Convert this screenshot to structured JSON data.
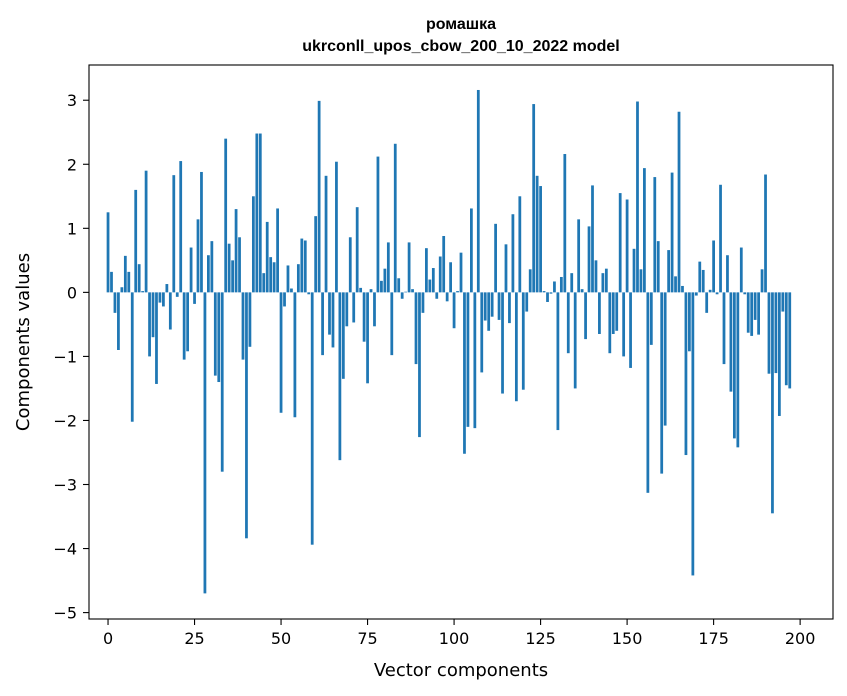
{
  "chart_data": {
    "type": "bar",
    "title": "ромашка",
    "subtitle": "ukrconll_upos_cbow_200_10_2022 model",
    "xlabel": "Vector components",
    "ylabel": "Components values",
    "xlim": [
      -5.5,
      209.5
    ],
    "ylim": [
      -5.1,
      3.55
    ],
    "xticks": [
      0,
      25,
      50,
      75,
      100,
      125,
      150,
      175,
      200
    ],
    "xtick_labels": [
      "0",
      "25",
      "50",
      "75",
      "100",
      "125",
      "150",
      "175",
      "200"
    ],
    "yticks": [
      -5,
      -4,
      -3,
      -2,
      -1,
      0,
      1,
      2,
      3
    ],
    "ytick_labels": [
      "−5",
      "−4",
      "−3",
      "−2",
      "−1",
      "0",
      "1",
      "2",
      "3"
    ],
    "grid": false,
    "bar_color": "#1f77b4",
    "categories_start": 0,
    "values": [
      1.25,
      0.32,
      -0.32,
      -0.9,
      0.08,
      0.57,
      0.32,
      -2.02,
      1.6,
      0.44,
      0.02,
      1.9,
      -1.0,
      -0.7,
      -1.43,
      -0.16,
      -0.22,
      0.13,
      -0.58,
      1.83,
      -0.07,
      2.05,
      -1.05,
      -0.92,
      0.7,
      -0.18,
      1.14,
      1.88,
      -4.7,
      0.58,
      0.8,
      -1.3,
      -1.4,
      -2.8,
      2.4,
      0.76,
      0.5,
      1.3,
      0.86,
      -1.05,
      -3.84,
      -0.85,
      1.5,
      2.48,
      2.48,
      0.3,
      1.1,
      0.55,
      0.47,
      1.31,
      -1.88,
      -0.22,
      0.42,
      0.06,
      -1.95,
      0.44,
      0.84,
      0.81,
      -0.03,
      -3.94,
      1.19,
      2.99,
      -0.98,
      1.82,
      -0.66,
      -0.86,
      2.04,
      -2.62,
      -1.35,
      -0.53,
      0.86,
      -0.47,
      1.33,
      0.07,
      -0.77,
      -1.42,
      0.05,
      -0.53,
      2.12,
      0.18,
      0.37,
      0.78,
      -0.98,
      2.32,
      0.22,
      -0.1,
      0.01,
      0.78,
      0.05,
      -1.12,
      -2.26,
      -0.32,
      0.69,
      0.2,
      0.38,
      -0.1,
      0.56,
      0.88,
      -0.14,
      0.47,
      -0.56,
      0.02,
      0.62,
      -2.52,
      -2.1,
      1.31,
      -2.12,
      3.16,
      -1.25,
      -0.44,
      -0.6,
      -0.38,
      1.07,
      -0.43,
      -1.58,
      0.75,
      -0.48,
      1.22,
      -1.7,
      1.5,
      -1.52,
      -0.3,
      0.36,
      2.94,
      1.82,
      1.66,
      0.02,
      -0.15,
      -0.02,
      0.17,
      -2.15,
      0.24,
      2.16,
      -0.95,
      0.3,
      -1.5,
      1.14,
      0.05,
      -0.73,
      1.03,
      1.67,
      0.5,
      -0.65,
      0.3,
      0.37,
      -0.95,
      -0.65,
      -0.6,
      1.55,
      -1.0,
      1.45,
      -1.18,
      0.68,
      2.98,
      0.36,
      1.94,
      -3.13,
      -0.82,
      1.8,
      0.8,
      -2.83,
      -2.08,
      0.66,
      1.87,
      0.25,
      2.82,
      0.1,
      -2.54,
      -0.92,
      -4.42,
      -0.05,
      0.48,
      0.35,
      -0.32,
      0.04,
      0.81,
      -0.03,
      1.68,
      -1.12,
      0.58,
      -1.55,
      -2.28,
      -2.42,
      0.7,
      -0.03,
      -0.63,
      -0.68,
      -0.43,
      -0.66,
      0.36,
      1.84,
      -1.27,
      -3.45,
      -1.26,
      -1.93,
      -0.3,
      -1.45,
      -1.5,
      0.0,
      0.0
    ]
  }
}
